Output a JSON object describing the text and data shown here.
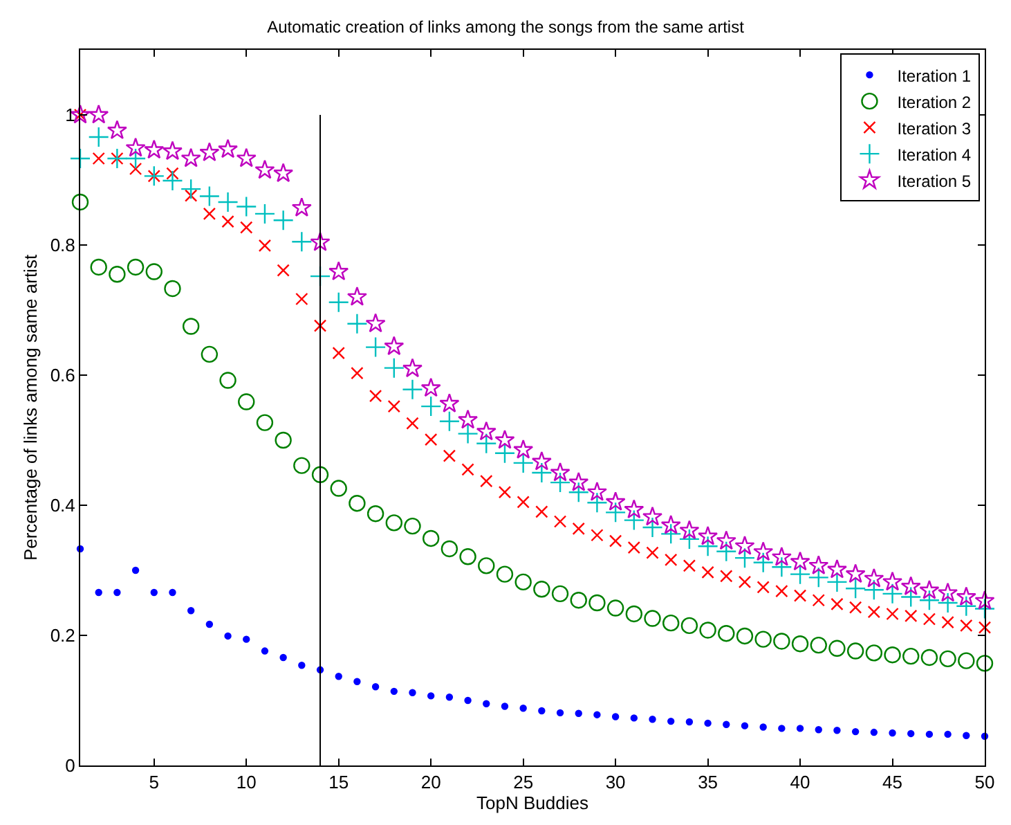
{
  "chart_data": {
    "type": "scatter",
    "title": "Automatic creation of links among the songs from the same artist",
    "xlabel": "TopN Buddies",
    "ylabel": "Percentage of links among same artist",
    "x": [
      1,
      2,
      3,
      4,
      5,
      6,
      7,
      8,
      9,
      10,
      11,
      12,
      13,
      14,
      15,
      16,
      17,
      18,
      19,
      20,
      21,
      22,
      23,
      24,
      25,
      26,
      27,
      28,
      29,
      30,
      31,
      32,
      33,
      34,
      35,
      36,
      37,
      38,
      39,
      40,
      41,
      42,
      43,
      44,
      45,
      46,
      47,
      48,
      49,
      50
    ],
    "series": [
      {
        "name": "Iteration 1",
        "color": "#0000ff",
        "marker": "point",
        "values": [
          0.333,
          0.266,
          0.266,
          0.3,
          0.266,
          0.266,
          0.238,
          0.217,
          0.199,
          0.194,
          0.176,
          0.166,
          0.154,
          0.147,
          0.137,
          0.129,
          0.121,
          0.114,
          0.112,
          0.107,
          0.105,
          0.1,
          0.095,
          0.091,
          0.088,
          0.084,
          0.081,
          0.08,
          0.078,
          0.075,
          0.073,
          0.071,
          0.068,
          0.067,
          0.065,
          0.063,
          0.061,
          0.059,
          0.057,
          0.057,
          0.055,
          0.054,
          0.052,
          0.051,
          0.05,
          0.049,
          0.048,
          0.048,
          0.046,
          0.045
        ]
      },
      {
        "name": "Iteration 2",
        "color": "#008000",
        "marker": "circle",
        "values": [
          0.866,
          0.766,
          0.755,
          0.766,
          0.759,
          0.733,
          0.675,
          0.632,
          0.592,
          0.559,
          0.527,
          0.5,
          0.461,
          0.447,
          0.426,
          0.403,
          0.387,
          0.373,
          0.368,
          0.349,
          0.333,
          0.321,
          0.307,
          0.294,
          0.282,
          0.271,
          0.264,
          0.254,
          0.25,
          0.242,
          0.233,
          0.226,
          0.219,
          0.215,
          0.208,
          0.203,
          0.199,
          0.194,
          0.191,
          0.187,
          0.185,
          0.18,
          0.176,
          0.173,
          0.17,
          0.168,
          0.166,
          0.164,
          0.161,
          0.157
        ]
      },
      {
        "name": "Iteration 3",
        "color": "#ff0000",
        "marker": "cross",
        "values": [
          1.0,
          0.933,
          0.933,
          0.917,
          0.906,
          0.91,
          0.876,
          0.848,
          0.836,
          0.827,
          0.799,
          0.761,
          0.717,
          0.676,
          0.634,
          0.603,
          0.568,
          0.552,
          0.526,
          0.501,
          0.476,
          0.455,
          0.437,
          0.42,
          0.405,
          0.39,
          0.375,
          0.364,
          0.354,
          0.345,
          0.335,
          0.327,
          0.316,
          0.307,
          0.297,
          0.291,
          0.282,
          0.274,
          0.268,
          0.261,
          0.254,
          0.248,
          0.243,
          0.236,
          0.233,
          0.23,
          0.225,
          0.22,
          0.215,
          0.212
        ]
      },
      {
        "name": "Iteration 4",
        "color": "#00bfbf",
        "marker": "plus",
        "values": [
          0.933,
          0.966,
          0.933,
          0.933,
          0.906,
          0.899,
          0.886,
          0.875,
          0.866,
          0.859,
          0.848,
          0.838,
          0.805,
          0.752,
          0.712,
          0.679,
          0.643,
          0.611,
          0.578,
          0.552,
          0.529,
          0.51,
          0.495,
          0.48,
          0.465,
          0.45,
          0.435,
          0.42,
          0.404,
          0.389,
          0.377,
          0.366,
          0.356,
          0.348,
          0.337,
          0.329,
          0.319,
          0.312,
          0.305,
          0.294,
          0.289,
          0.282,
          0.272,
          0.27,
          0.264,
          0.259,
          0.254,
          0.25,
          0.245,
          0.241
        ]
      },
      {
        "name": "Iteration 5",
        "color": "#bf00bf",
        "marker": "star",
        "values": [
          1.0,
          1.0,
          0.976,
          0.949,
          0.946,
          0.944,
          0.933,
          0.942,
          0.947,
          0.933,
          0.915,
          0.91,
          0.857,
          0.804,
          0.759,
          0.72,
          0.679,
          0.644,
          0.61,
          0.58,
          0.556,
          0.531,
          0.513,
          0.5,
          0.485,
          0.467,
          0.45,
          0.435,
          0.42,
          0.405,
          0.393,
          0.382,
          0.369,
          0.361,
          0.352,
          0.345,
          0.337,
          0.328,
          0.32,
          0.313,
          0.307,
          0.301,
          0.294,
          0.287,
          0.282,
          0.275,
          0.269,
          0.265,
          0.259,
          0.253
        ]
      }
    ],
    "xlim": [
      1,
      50
    ],
    "xticks": [
      5,
      10,
      15,
      20,
      25,
      30,
      35,
      40,
      45,
      50
    ],
    "ylim": [
      0,
      1.1
    ],
    "yticks": [
      0,
      0.2,
      0.4,
      0.6,
      0.8,
      1
    ],
    "ref_lines": [
      {
        "axis": "x",
        "value": 14,
        "color": "#000000"
      }
    ],
    "legend": "top right"
  }
}
